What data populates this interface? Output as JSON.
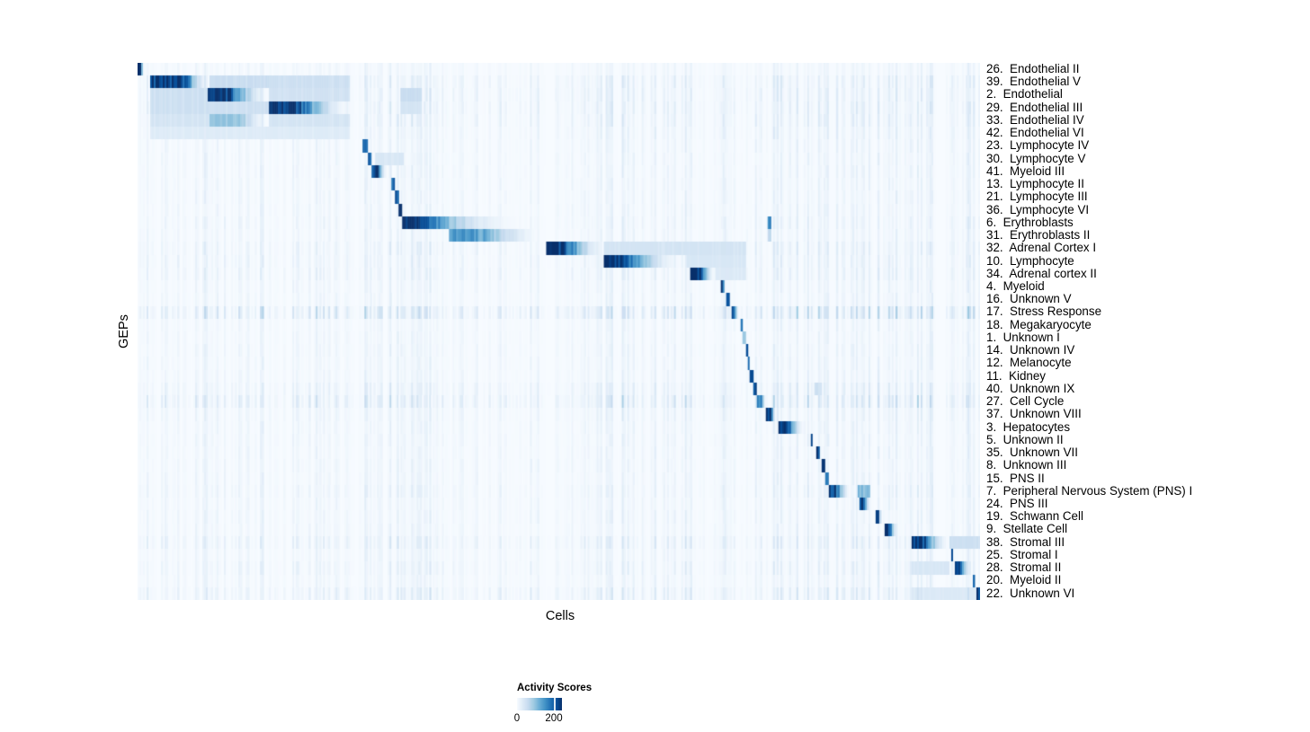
{
  "chart_data": {
    "type": "heatmap",
    "xlabel": "Cells",
    "ylabel": "GEPs",
    "scale_max": 250,
    "legend": {
      "title": "Activity Scores",
      "tick_labels": [
        "0",
        "200"
      ],
      "tick_positions": [
        0.0,
        0.82
      ],
      "range": [
        0,
        244
      ]
    },
    "colormap": {
      "name": "Blues",
      "stops": [
        "#F7FBFF",
        "#DEEBF7",
        "#C6DBEF",
        "#9ECAE1",
        "#6BAED6",
        "#4292C6",
        "#2171B5",
        "#08519C",
        "#08306B"
      ]
    },
    "noise": {
      "seed": 42,
      "columns": 468,
      "amplitude": 16,
      "regions": [
        {
          "range": [
            0.0,
            0.26
          ],
          "boost": 1.1
        },
        {
          "range": [
            0.26,
            0.35
          ],
          "boost": 1.35
        },
        {
          "range": [
            0.35,
            0.55
          ],
          "boost": 0.85
        },
        {
          "range": [
            0.55,
            0.77
          ],
          "boost": 1.5
        },
        {
          "range": [
            0.77,
            0.86
          ],
          "boost": 1.25
        },
        {
          "range": [
            0.86,
            1.0
          ],
          "boost": 1.45
        }
      ]
    },
    "rows": [
      {
        "label": "26.  Endothelial II",
        "noise": 0.8,
        "blocks": [
          {
            "x": [
              0.0,
              0.008
            ],
            "peak": 250,
            "fade": true,
            "plateau": 0.5
          }
        ]
      },
      {
        "label": "39.  Endothelial V",
        "noise": 1.6,
        "blocks": [
          {
            "x": [
              0.014,
              0.085
            ],
            "peak": 250,
            "fade": true,
            "plateau": 0.55
          },
          {
            "x": [
              0.085,
              0.157
            ],
            "peak": 60
          },
          {
            "x": [
              0.157,
              0.253
            ],
            "peak": 55
          }
        ]
      },
      {
        "label": "2.  Endothelial",
        "noise": 1.6,
        "blocks": [
          {
            "x": [
              0.083,
              0.157
            ],
            "peak": 250,
            "fade": true,
            "plateau": 0.3
          },
          {
            "x": [
              0.014,
              0.083
            ],
            "peak": 55
          },
          {
            "x": [
              0.157,
              0.253
            ],
            "peak": 50
          },
          {
            "x": [
              0.313,
              0.337
            ],
            "peak": 60
          }
        ]
      },
      {
        "label": "29.  Endothelial III",
        "noise": 1.6,
        "blocks": [
          {
            "x": [
              0.157,
              0.253
            ],
            "peak": 250,
            "fade": true,
            "plateau": 0.3
          },
          {
            "x": [
              0.014,
              0.157
            ],
            "peak": 55
          },
          {
            "x": [
              0.313,
              0.337
            ],
            "peak": 45
          }
        ]
      },
      {
        "label": "33.  Endothelial IV",
        "noise": 1.5,
        "blocks": [
          {
            "x": [
              0.085,
              0.157
            ],
            "peak": 105,
            "fade": true,
            "plateau": 0.5
          },
          {
            "x": [
              0.014,
              0.085
            ],
            "peak": 45
          },
          {
            "x": [
              0.157,
              0.253
            ],
            "peak": 45
          }
        ]
      },
      {
        "label": "42.  Endothelial VI",
        "noise": 1.2,
        "blocks": [
          {
            "x": [
              0.014,
              0.253
            ],
            "peak": 32
          }
        ]
      },
      {
        "label": "23.  Lymphocyte IV",
        "noise": 1.0,
        "blocks": [
          {
            "x": [
              0.2675,
              0.2725
            ],
            "peak": 235
          }
        ]
      },
      {
        "label": "30.  Lymphocyte V",
        "noise": 1.0,
        "blocks": [
          {
            "x": [
              0.273,
              0.278
            ],
            "peak": 225
          },
          {
            "x": [
              0.282,
              0.316
            ],
            "peak": 40
          }
        ]
      },
      {
        "label": "41.  Myeloid III",
        "noise": 1.0,
        "blocks": [
          {
            "x": [
              0.2775,
              0.296
            ],
            "peak": 250,
            "fade": true,
            "plateau": 0.35
          }
        ]
      },
      {
        "label": "13.  Lymphocyte II",
        "noise": 1.0,
        "blocks": [
          {
            "x": [
              0.3008,
              0.3045
            ],
            "peak": 230
          }
        ]
      },
      {
        "label": "21.  Lymphocyte III",
        "noise": 1.0,
        "blocks": [
          {
            "x": [
              0.305,
              0.3098
            ],
            "peak": 225
          }
        ]
      },
      {
        "label": "36.  Lymphocyte VI",
        "noise": 1.0,
        "blocks": [
          {
            "x": [
              0.3095,
              0.315
            ],
            "peak": 250
          }
        ]
      },
      {
        "label": "6.  Erythroblasts",
        "noise": 1.2,
        "blocks": [
          {
            "x": [
              0.3148,
              0.48
            ],
            "peak": 250,
            "fade": true,
            "plateau": 0.12,
            "gamma": 3
          },
          {
            "x": [
              0.747,
              0.7515
            ],
            "peak": 180
          }
        ]
      },
      {
        "label": "31.  Erythroblasts II",
        "noise": 1.0,
        "blocks": [
          {
            "x": [
              0.3703,
              0.4802
            ],
            "peak": 165,
            "fade": true,
            "plateau": 0.25,
            "gamma": 1.6
          },
          {
            "x": [
              0.747,
              0.7515
            ],
            "peak": 70
          }
        ]
      },
      {
        "label": "32.  Adrenal Cortex I",
        "noise": 1.5,
        "blocks": [
          {
            "x": [
              0.4845,
              0.554
            ],
            "peak": 250,
            "fade": true,
            "plateau": 0.3
          },
          {
            "x": [
              0.554,
              0.723
            ],
            "peak": 45
          }
        ]
      },
      {
        "label": "10.  Lymphocyte",
        "noise": 1.4,
        "blocks": [
          {
            "x": [
              0.5539,
              0.651
            ],
            "peak": 250,
            "fade": true,
            "plateau": 0.18,
            "gamma": 2
          },
          {
            "x": [
              0.651,
              0.723
            ],
            "peak": 40
          }
        ]
      },
      {
        "label": "34.  Adrenal cortex II",
        "noise": 1.4,
        "blocks": [
          {
            "x": [
              0.6553,
              0.6855
            ],
            "peak": 250,
            "fade": true,
            "plateau": 0.35
          },
          {
            "x": [
              0.6855,
              0.723
            ],
            "peak": 35
          }
        ]
      },
      {
        "label": "4.  Myeloid",
        "noise": 1.0,
        "blocks": [
          {
            "x": [
              0.6916,
              0.698
            ],
            "peak": 245,
            "fade": true,
            "plateau": 0.5
          }
        ]
      },
      {
        "label": "16.  Unknown V",
        "noise": 1.0,
        "blocks": [
          {
            "x": [
              0.699,
              0.7035
            ],
            "peak": 220
          }
        ]
      },
      {
        "label": "17.  Stress Response",
        "noise": 3.2,
        "blocks": [
          {
            "x": [
              0.7044,
              0.714
            ],
            "peak": 235,
            "fade": true,
            "plateau": 0.4
          }
        ]
      },
      {
        "label": "18.  Megakaryocyte",
        "noise": 0.9,
        "blocks": [
          {
            "x": [
              0.715,
              0.7185
            ],
            "peak": 225
          }
        ]
      },
      {
        "label": "1.  Unknown I",
        "noise": 0.9,
        "blocks": [
          {
            "x": [
              0.7185,
              0.7215
            ],
            "peak": 95
          }
        ]
      },
      {
        "label": "14.  Unknown IV",
        "noise": 1.0,
        "blocks": [
          {
            "x": [
              0.7215,
              0.7248
            ],
            "peak": 245
          }
        ]
      },
      {
        "label": "12.  Melanocyte",
        "noise": 1.0,
        "blocks": [
          {
            "x": [
              0.7248,
              0.727
            ],
            "peak": 205
          }
        ]
      },
      {
        "label": "11.  Kidney",
        "noise": 1.0,
        "blocks": [
          {
            "x": [
              0.727,
              0.7312
            ],
            "peak": 225
          }
        ]
      },
      {
        "label": "40.  Unknown IX",
        "noise": 1.6,
        "blocks": [
          {
            "x": [
              0.7312,
              0.7355
            ],
            "peak": 235
          },
          {
            "x": [
              0.803,
              0.812
            ],
            "peak": 55
          }
        ]
      },
      {
        "label": "27.  Cell Cycle",
        "noise": 2.6,
        "blocks": [
          {
            "x": [
              0.7355,
              0.746
            ],
            "peak": 175,
            "fade": true,
            "plateau": 0.45
          }
        ]
      },
      {
        "label": "37.  Unknown VIII",
        "noise": 1.2,
        "blocks": [
          {
            "x": [
              0.746,
              0.7577
            ],
            "peak": 250,
            "fade": true,
            "plateau": 0.5
          }
        ]
      },
      {
        "label": "3.  Hepatocytes",
        "noise": 1.0,
        "blocks": [
          {
            "x": [
              0.761,
              0.792
            ],
            "peak": 250,
            "fade": true,
            "plateau": 0.3
          }
        ]
      },
      {
        "label": "5.  Unknown II",
        "noise": 1.0,
        "blocks": [
          {
            "x": [
              0.7983,
              0.8017
            ],
            "peak": 245
          }
        ]
      },
      {
        "label": "35.  Unknown VII",
        "noise": 1.0,
        "blocks": [
          {
            "x": [
              0.8058,
              0.8102
            ],
            "peak": 250
          }
        ]
      },
      {
        "label": "8.  Unknown III",
        "noise": 1.0,
        "blocks": [
          {
            "x": [
              0.8122,
              0.8165
            ],
            "peak": 245
          }
        ]
      },
      {
        "label": "15.  PNS II",
        "noise": 1.0,
        "blocks": [
          {
            "x": [
              0.8165,
              0.821
            ],
            "peak": 205
          }
        ]
      },
      {
        "label": "7.  Peripheral Nervous System (PNS) I",
        "noise": 1.3,
        "blocks": [
          {
            "x": [
              0.8207,
              0.8455
            ],
            "peak": 250,
            "fade": true,
            "plateau": 0.3
          },
          {
            "x": [
              0.854,
              0.87
            ],
            "peak": 120
          }
        ]
      },
      {
        "label": "24.  PNS III",
        "noise": 1.0,
        "blocks": [
          {
            "x": [
              0.857,
              0.87
            ],
            "peak": 250,
            "fade": true,
            "plateau": 0.4
          }
        ]
      },
      {
        "label": "19.  Schwann Cell",
        "noise": 1.0,
        "blocks": [
          {
            "x": [
              0.8762,
              0.8828
            ],
            "peak": 235,
            "fade": true,
            "plateau": 0.5
          }
        ]
      },
      {
        "label": "9.  Stellate Cell",
        "noise": 1.0,
        "blocks": [
          {
            "x": [
              0.8869,
              0.902
            ],
            "peak": 250,
            "fade": true,
            "plateau": 0.35
          }
        ]
      },
      {
        "label": "38.  Stromal III",
        "noise": 1.8,
        "blocks": [
          {
            "x": [
              0.9178,
              0.963
            ],
            "peak": 250,
            "fade": true,
            "plateau": 0.3
          },
          {
            "x": [
              0.963,
              1.0
            ],
            "peak": 55
          }
        ]
      },
      {
        "label": "25.  Stromal I",
        "noise": 1.0,
        "blocks": [
          {
            "x": [
              0.9648,
              0.9672
            ],
            "peak": 245
          }
        ]
      },
      {
        "label": "28.  Stromal II",
        "noise": 1.4,
        "blocks": [
          {
            "x": [
              0.9691,
              0.9895
            ],
            "peak": 235,
            "fade": true,
            "plateau": 0.35
          },
          {
            "x": [
              0.9178,
              0.963
            ],
            "peak": 40
          }
        ]
      },
      {
        "label": "20.  Myeloid II",
        "noise": 1.0,
        "blocks": [
          {
            "x": [
              0.9915,
              0.9938
            ],
            "peak": 205
          }
        ]
      },
      {
        "label": "22.  Unknown VI",
        "noise": 1.8,
        "blocks": [
          {
            "x": [
              0.9947,
              1.0
            ],
            "peak": 250
          },
          {
            "x": [
              0.9178,
              0.9947
            ],
            "peak": 35
          }
        ]
      }
    ]
  }
}
